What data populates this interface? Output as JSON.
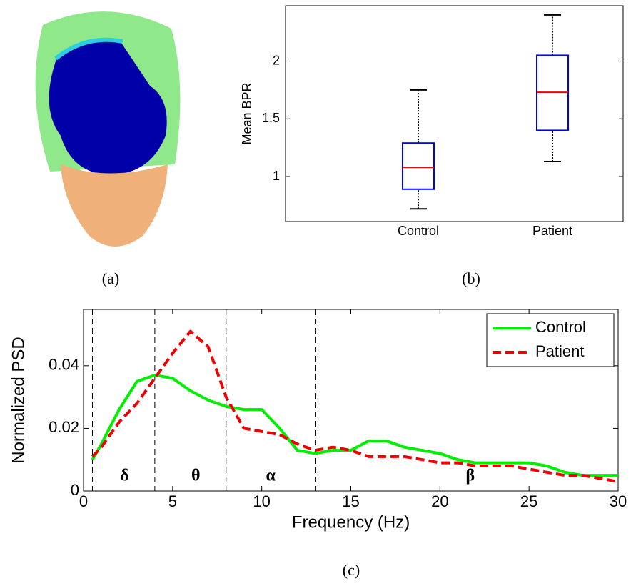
{
  "panel_labels": [
    "(a)",
    "(b)",
    "(c)"
  ],
  "chart_data": [
    {
      "type": "box",
      "ylabel": "Mean BPR",
      "categories": [
        "Control",
        "Patient"
      ],
      "boxes": [
        {
          "min": 0.72,
          "q1": 0.89,
          "median": 1.08,
          "q3": 1.29,
          "max": 1.75
        },
        {
          "min": 1.13,
          "q1": 1.4,
          "median": 1.73,
          "q3": 2.05,
          "max": 2.4
        }
      ],
      "box_color": "#0000ff",
      "median_color": "#ff0000",
      "whisker_color": "#000000",
      "ylim": [
        0.61,
        2.48
      ],
      "yticks": [
        1,
        1.5,
        2
      ]
    },
    {
      "type": "line",
      "xlabel": "Frequency (Hz)",
      "ylabel": "Normalized PSD",
      "x": [
        0.5,
        1,
        2,
        3,
        4,
        5,
        6,
        7,
        8,
        9,
        10,
        11,
        12,
        13,
        14,
        15,
        16,
        17,
        18,
        19,
        20,
        21,
        22,
        23,
        24,
        25,
        26,
        27,
        28,
        29,
        30
      ],
      "series": [
        {
          "name": "Control",
          "color": "#00ee00",
          "dash": false,
          "values": [
            0.01,
            0.015,
            0.026,
            0.035,
            0.037,
            0.036,
            0.032,
            0.029,
            0.027,
            0.026,
            0.026,
            0.02,
            0.013,
            0.012,
            0.013,
            0.013,
            0.016,
            0.016,
            0.014,
            0.013,
            0.012,
            0.01,
            0.009,
            0.009,
            0.009,
            0.009,
            0.008,
            0.006,
            0.005,
            0.005,
            0.005
          ]
        },
        {
          "name": "Patient",
          "color": "#ee0000",
          "dash": true,
          "values": [
            0.011,
            0.014,
            0.022,
            0.028,
            0.036,
            0.044,
            0.051,
            0.046,
            0.03,
            0.02,
            0.019,
            0.018,
            0.015,
            0.013,
            0.014,
            0.013,
            0.011,
            0.011,
            0.011,
            0.01,
            0.009,
            0.009,
            0.008,
            0.008,
            0.008,
            0.007,
            0.006,
            0.005,
            0.005,
            0.004,
            0.003
          ]
        }
      ],
      "vlines": [
        0.5,
        4,
        8,
        13
      ],
      "annotations": [
        {
          "text": "δ",
          "x": 2.3
        },
        {
          "text": "θ",
          "x": 6.3
        },
        {
          "text": "α",
          "x": 10.5
        },
        {
          "text": "β",
          "x": 21.7
        }
      ],
      "xlim": [
        0,
        30
      ],
      "xticks": [
        0,
        5,
        10,
        15,
        20,
        25,
        30
      ],
      "ylim": [
        0,
        0.058
      ],
      "yticks": [
        0,
        0.02,
        0.04
      ],
      "legend": "upper right"
    }
  ]
}
